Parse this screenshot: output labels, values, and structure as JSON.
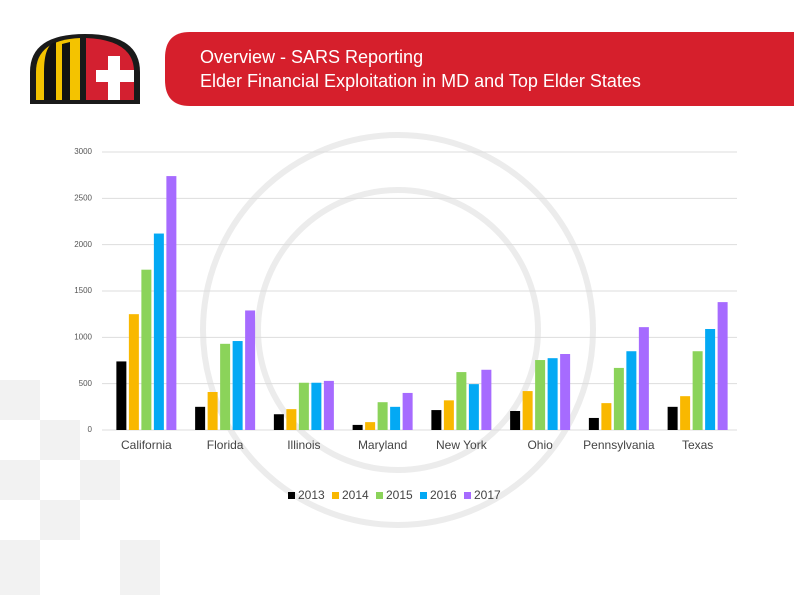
{
  "header": {
    "title_lines": [
      "Overview - SARS Reporting",
      "Elder Financial Exploitation in MD and Top Elder States"
    ]
  },
  "chart_data": {
    "type": "bar",
    "categories": [
      "California",
      "Florida",
      "Illinois",
      "Maryland",
      "New York",
      "Ohio",
      "Pennsylvania",
      "Texas"
    ],
    "series": [
      {
        "name": "2013",
        "color": "#000000",
        "values": [
          740,
          250,
          170,
          55,
          215,
          205,
          130,
          250
        ]
      },
      {
        "name": "2014",
        "color": "#f9b800",
        "values": [
          1250,
          410,
          225,
          85,
          320,
          420,
          290,
          365
        ]
      },
      {
        "name": "2015",
        "color": "#8bd35a",
        "values": [
          1730,
          930,
          510,
          300,
          625,
          755,
          670,
          850
        ]
      },
      {
        "name": "2016",
        "color": "#03a9f4",
        "values": [
          2120,
          960,
          510,
          250,
          495,
          775,
          850,
          1090
        ]
      },
      {
        "name": "2017",
        "color": "#a66bff",
        "values": [
          2740,
          1290,
          530,
          400,
          650,
          820,
          1110,
          1380
        ]
      }
    ],
    "ylim": [
      0,
      3000
    ],
    "yticks": [
      0,
      500,
      1000,
      1500,
      2000,
      2500,
      3000
    ],
    "grid": true,
    "legend": "bottom"
  }
}
